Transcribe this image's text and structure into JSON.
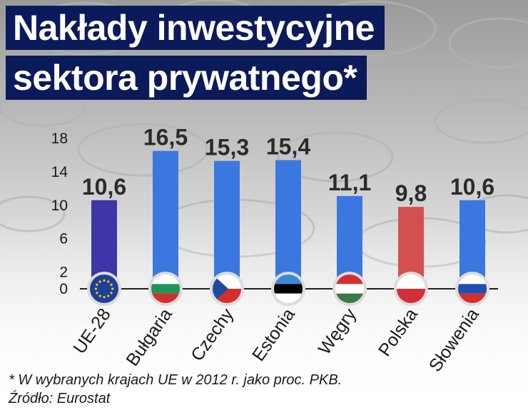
{
  "title_lines": [
    "Nakłady inwestycyjne",
    "sektora prywatnego*"
  ],
  "footnote": "* W wybranych krajach UE w 2012 r. jako proc. PKB.",
  "source": "Źródło: Eurostat",
  "colors": {
    "title_bg": "#0b1a5a",
    "bar_eu": "#3d35a8",
    "bar_default": "#3a78e0",
    "bar_highlight": "#d45050",
    "axis": "#222222"
  },
  "chart_data": {
    "type": "bar",
    "title": "Nakłady inwestycyjne sektora prywatnego*",
    "categories": [
      "UE-28",
      "Bułgaria",
      "Czechy",
      "Estonia",
      "Węgry",
      "Polska",
      "Słowenia"
    ],
    "values": [
      10.6,
      16.5,
      15.3,
      15.4,
      11.1,
      9.8,
      10.6
    ],
    "value_labels": [
      "10,6",
      "16,5",
      "15,3",
      "15,4",
      "11,1",
      "9,8",
      "10,6"
    ],
    "bar_colors": [
      "#3d35a8",
      "#3a78e0",
      "#3a78e0",
      "#3a78e0",
      "#3a78e0",
      "#d45050",
      "#3a78e0"
    ],
    "flags": [
      "eu-flag-icon",
      "bulgaria-flag-icon",
      "czechia-flag-icon",
      "estonia-flag-icon",
      "hungary-flag-icon",
      "poland-flag-icon",
      "slovenia-flag-icon"
    ],
    "yticks": [
      0,
      2,
      6,
      10,
      14,
      18
    ],
    "ylim": [
      0,
      18
    ],
    "xlabel": "",
    "ylabel": "",
    "grid": false,
    "legend": "none"
  }
}
